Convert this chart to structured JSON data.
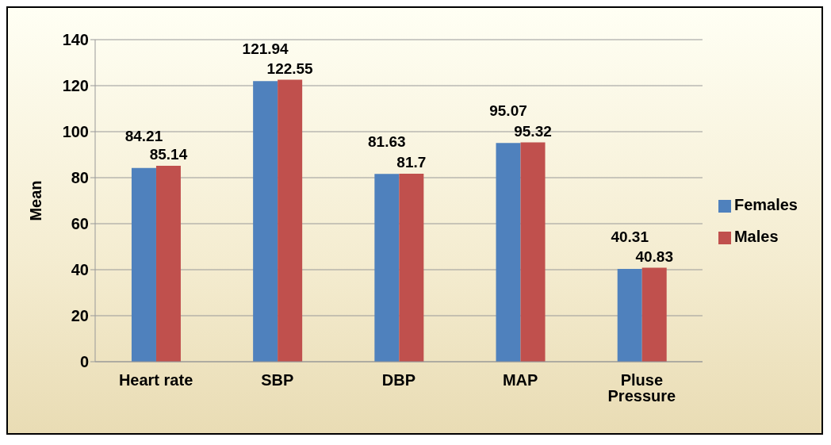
{
  "chart_data": {
    "type": "bar",
    "ylabel": "Mean",
    "categories": [
      "Heart rate",
      "SBP",
      "DBP",
      "MAP",
      "Pluse Pressure"
    ],
    "series": [
      {
        "name": "Females",
        "color": "#4f81bd",
        "values": [
          84.21,
          121.94,
          81.63,
          95.07,
          40.31
        ]
      },
      {
        "name": "Males",
        "color": "#c0504d",
        "values": [
          85.14,
          122.55,
          81.7,
          95.32,
          40.83
        ]
      }
    ],
    "ylim": [
      0,
      140
    ],
    "yticks": [
      0,
      20,
      40,
      60,
      80,
      100,
      120,
      140
    ],
    "grid": "y",
    "legend": "right",
    "data_labels": true
  }
}
